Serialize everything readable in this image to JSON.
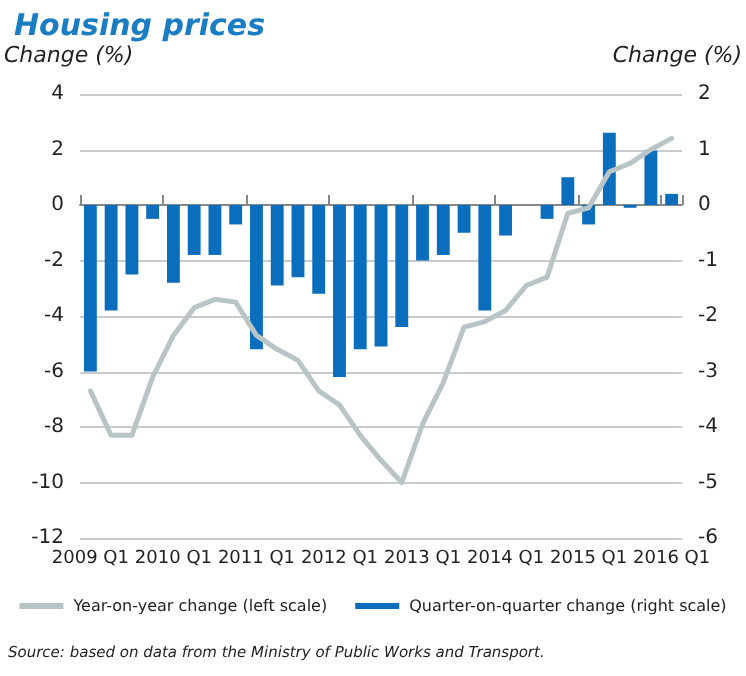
{
  "chart_data": {
    "type": "bar",
    "title": "Housing prices",
    "ylabel": "Change (%)",
    "y2label": "Change (%)",
    "categories": [
      "2009 Q1",
      null,
      null,
      null,
      "2010 Q1",
      null,
      null,
      null,
      "2011 Q1",
      null,
      null,
      null,
      "2012 Q1",
      null,
      null,
      null,
      "2013 Q1",
      null,
      null,
      null,
      "2014 Q1",
      null,
      null,
      null,
      "2015 Q1",
      null,
      null,
      null,
      "2016 Q1"
    ],
    "series": [
      {
        "name": "Year-on-year change (left scale)",
        "type": "line",
        "color": "#b8c4c6",
        "values": [
          -6.7,
          -8.3,
          -8.3,
          -6.2,
          -4.7,
          -3.7,
          -3.4,
          -3.5,
          -4.7,
          -5.2,
          -5.6,
          -6.7,
          -7.2,
          -8.3,
          -9.2,
          -10.0,
          -7.9,
          -6.4,
          -4.4,
          -4.2,
          -3.8,
          -2.9,
          -2.6,
          -0.3,
          -0.1,
          1.2,
          1.5,
          2.0,
          2.4
        ]
      },
      {
        "name": "Quarter-on-quarter change (right scale)",
        "axis": "y2",
        "color": "#0a6ebd",
        "values": [
          -3.0,
          -1.9,
          -1.25,
          -0.25,
          -1.4,
          -0.9,
          -0.9,
          -0.35,
          -2.6,
          -1.45,
          -1.3,
          -1.6,
          -3.1,
          -2.6,
          -2.55,
          -2.2,
          -1.0,
          -0.9,
          -0.5,
          -1.9,
          -0.55,
          0,
          -0.25,
          0.5,
          -0.35,
          1.3,
          -0.05,
          0.98,
          0.2
        ]
      }
    ],
    "ylim": [
      -12,
      4
    ],
    "yticks": [
      -12,
      -10,
      -8,
      -6,
      -4,
      -2,
      0,
      2,
      4
    ],
    "y2lim": [
      -6,
      2
    ],
    "y2ticks": [
      -6,
      -5,
      -4,
      -3,
      -2,
      -1,
      0,
      1,
      2
    ],
    "grid": "y",
    "legend": "bottom",
    "marker": "none",
    "line_style": "solid",
    "annotations": [
      "Source: based on data from the Ministry of Public Works and Transport."
    ]
  }
}
